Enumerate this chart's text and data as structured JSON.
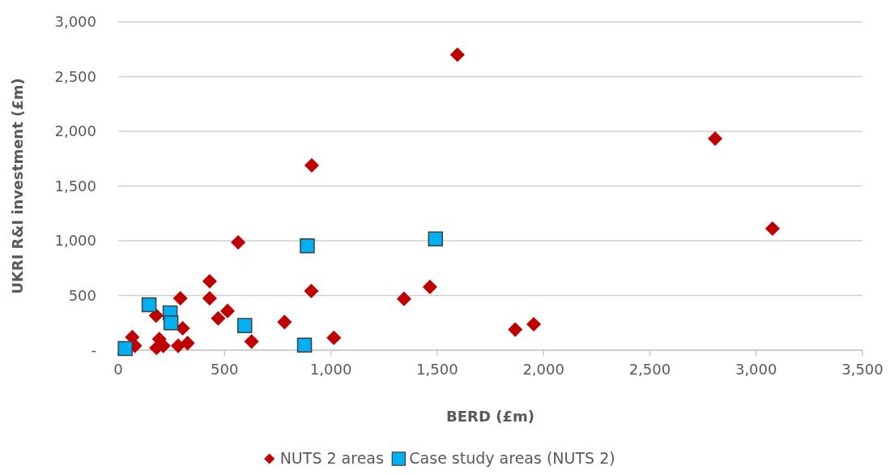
{
  "chart_data": {
    "type": "scatter",
    "xlabel": "BERD (£m)",
    "ylabel": "UKRI R&I investment (£m)",
    "xlim": [
      0,
      3500
    ],
    "xticks": [
      {
        "value": 0,
        "label": "0"
      },
      {
        "value": 500,
        "label": "500"
      },
      {
        "value": 1000,
        "label": "1,000"
      },
      {
        "value": 1500,
        "label": "1,500"
      },
      {
        "value": 2000,
        "label": "2,000"
      },
      {
        "value": 2500,
        "label": "2,500"
      },
      {
        "value": 3000,
        "label": "3,000"
      },
      {
        "value": 3500,
        "label": "3,500"
      }
    ],
    "ylim": [
      0,
      3000
    ],
    "yticks": [
      {
        "value": 0,
        "label": "-"
      },
      {
        "value": 500,
        "label": "500"
      },
      {
        "value": 1000,
        "label": "1,000"
      },
      {
        "value": 1500,
        "label": "1,500"
      },
      {
        "value": 2000,
        "label": "2,000"
      },
      {
        "value": 2500,
        "label": "2,500"
      },
      {
        "value": 3000,
        "label": "3,000"
      }
    ],
    "grid": "y",
    "legend": "bottom",
    "series": [
      {
        "name": "NUTS 2 areas",
        "color": "#c00000",
        "marker": "diamond",
        "x": [
          564,
          430,
          908,
          292,
          430,
          514,
          470,
          178,
          782,
          303,
          1014,
          627,
          66,
          193,
          78,
          180,
          212,
          282,
          326,
          1466,
          1344,
          1867,
          1954,
          1595,
          2807,
          3077,
          910
        ],
        "values": [
          985,
          630,
          541,
          474,
          474,
          358,
          291,
          316,
          257,
          200,
          113,
          79,
          119,
          101,
          40,
          20,
          40,
          40,
          64,
          578,
          469,
          188,
          237,
          2700,
          1933,
          1111,
          1689
        ]
      },
      {
        "name": "Case study areas (NUTS 2)",
        "color": "#00b0f0",
        "marker": "square",
        "x": [
          889,
          145,
          244,
          248,
          595,
          876,
          33,
          1492
        ],
        "values": [
          953,
          415,
          341,
          250,
          225,
          47,
          15,
          1017
        ]
      }
    ]
  }
}
